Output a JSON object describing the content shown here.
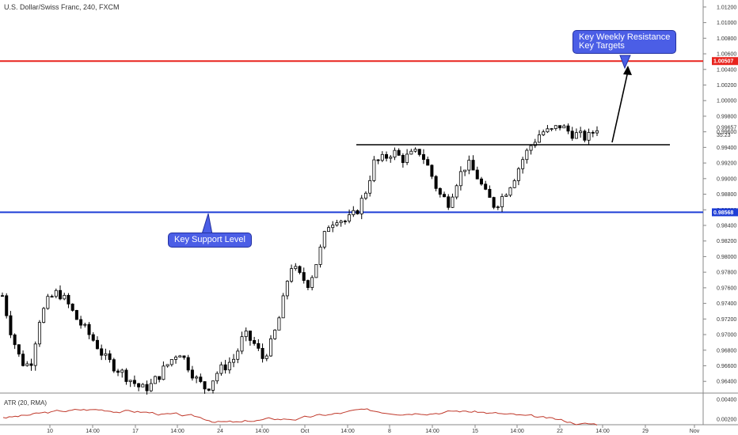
{
  "header": {
    "title": "U.S. Dollar/Swiss Franc, 240, FXCM"
  },
  "indicator": {
    "label": "ATR (20, RMA)"
  },
  "annotations": {
    "support_label": "Key Support Level",
    "resistance_line1": "Key Weekly Resistance",
    "resistance_line2": "Key Targets"
  },
  "price_tags": {
    "resistance": "1.00507",
    "support": "0.98568",
    "last": "0.99657",
    "countdown": "35:23"
  },
  "colors": {
    "resistance": "#e8231d",
    "support": "#1f3ed6",
    "callout": "#4b5ee6",
    "candle": "#000000",
    "atr": "#c0392b"
  },
  "chart_data": [
    {
      "type": "candlestick",
      "title": "U.S. Dollar/Swiss Franc, 240, FXCM",
      "ylim": [
        0.9625,
        1.0129
      ],
      "y_ticks": [
        "1.01200",
        "1.01000",
        "1.00800",
        "1.00600",
        "1.00400",
        "1.00200",
        "1.00000",
        "0.99800",
        "0.99600",
        "0.99400",
        "0.99200",
        "0.99000",
        "0.98800",
        "0.98600",
        "0.98400",
        "0.98200",
        "0.98000",
        "0.97800",
        "0.97600",
        "0.97400",
        "0.97200",
        "0.97000",
        "0.96800",
        "0.96600",
        "0.96400"
      ],
      "x_ticks": [
        "10",
        "14:00",
        "17",
        "14:00",
        "24",
        "14:00",
        "Oct",
        "14:00",
        "8",
        "14:00",
        "15",
        "14:00",
        "22",
        "14:00",
        "29",
        "Nov"
      ],
      "horizontal_levels": [
        {
          "name": "Key Weekly Resistance",
          "value": 1.00507
        },
        {
          "name": "Key Support Level",
          "value": 0.98568
        }
      ],
      "close_path": [
        0.975,
        0.97,
        0.9665,
        0.966,
        0.972,
        0.9745,
        0.9755,
        0.974,
        0.972,
        0.9705,
        0.969,
        0.967,
        0.966,
        0.965,
        0.964,
        0.963,
        0.9635,
        0.965,
        0.9665,
        0.968,
        0.966,
        0.964,
        0.963,
        0.965,
        0.966,
        0.967,
        0.97,
        0.969,
        0.967,
        0.969,
        0.973,
        0.979,
        0.9775,
        0.9765,
        0.98,
        0.984,
        0.985,
        0.9845,
        0.9855,
        0.988,
        0.992,
        0.9925,
        0.9935,
        0.9925,
        0.993,
        0.9935,
        0.991,
        0.988,
        0.987,
        0.99,
        0.992,
        0.9905,
        0.988,
        0.9865,
        0.988,
        0.99,
        0.9925,
        0.9945,
        0.996,
        0.996,
        0.9968,
        0.996,
        0.9955,
        0.9952,
        0.9966
      ],
      "atr": {
        "name": "ATR (20, RMA)",
        "ylim": [
          0.0015,
          0.0045
        ],
        "y_ticks": [
          "0.00400",
          "0.00200"
        ]
      }
    }
  ]
}
